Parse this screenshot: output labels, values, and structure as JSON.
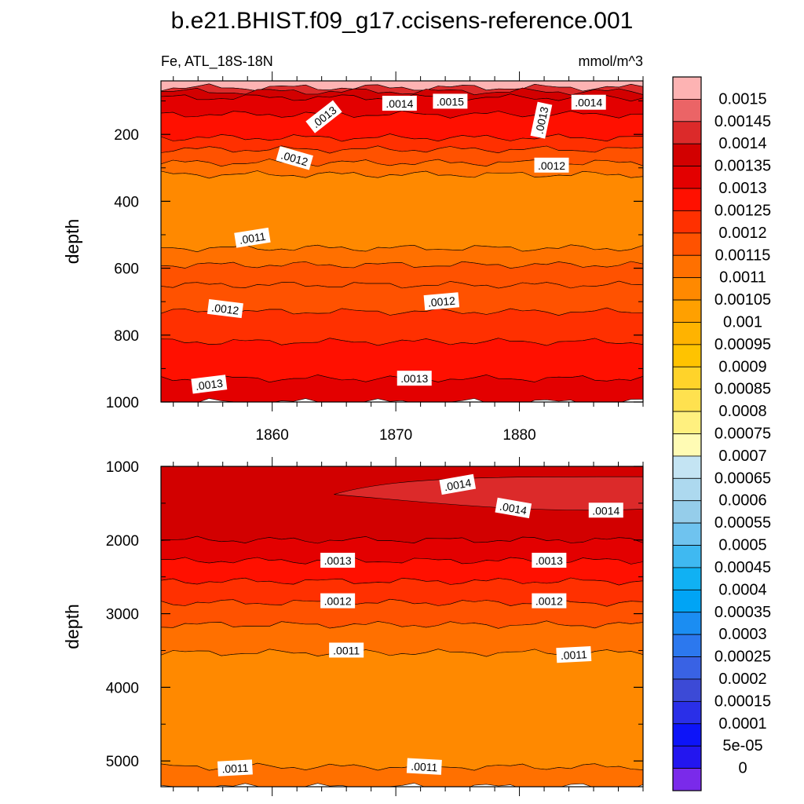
{
  "chart_data": {
    "type": "contour",
    "title": "b.e21.BHIST.f09_g17.ccisens-reference.001",
    "variable_label": "Fe, ATL_18S-18N",
    "units": "mmol/m^3",
    "x": {
      "range": [
        1851,
        1890
      ],
      "ticks": [
        1860,
        1870,
        1880
      ],
      "tick_labels": [
        "1860",
        "1870",
        "1880"
      ]
    },
    "panels": [
      {
        "id": "upper",
        "ylabel": "depth",
        "ylim": [
          40,
          1000
        ],
        "yticks": [
          200,
          400,
          600,
          800,
          1000
        ],
        "ytick_labels": [
          "200",
          "400",
          "600",
          "800",
          "1000"
        ],
        "bands": [
          {
            "from": 0,
            "to": 60,
            "level": 0.00155
          },
          {
            "from": 60,
            "to": 72,
            "level": 0.00145
          },
          {
            "from": 72,
            "to": 90,
            "level": 0.0014
          },
          {
            "from": 90,
            "to": 140,
            "level": 0.00135
          },
          {
            "from": 140,
            "to": 210,
            "level": 0.0013
          },
          {
            "from": 210,
            "to": 245,
            "level": 0.00125
          },
          {
            "from": 245,
            "to": 285,
            "level": 0.0012
          },
          {
            "from": 285,
            "to": 320,
            "level": 0.00115
          },
          {
            "from": 320,
            "to": 540,
            "level": 0.0011
          },
          {
            "from": 540,
            "to": 590,
            "level": 0.00115
          },
          {
            "from": 590,
            "to": 650,
            "level": 0.0012
          },
          {
            "from": 650,
            "to": 730,
            "level": 0.0012
          },
          {
            "from": 730,
            "to": 820,
            "level": 0.00125
          },
          {
            "from": 820,
            "to": 930,
            "level": 0.0013
          },
          {
            "from": 930,
            "to": 1000,
            "level": 0.00135
          }
        ],
        "contour_labels": [
          {
            "text": ".0014",
            "x": 1870.3,
            "y": 108,
            "angle": 0
          },
          {
            "text": ".0015",
            "x": 1874.4,
            "y": 102,
            "angle": 0
          },
          {
            "text": ".0014",
            "x": 1885.6,
            "y": 105,
            "angle": 0
          },
          {
            "text": ".0013",
            "x": 1864.2,
            "y": 148,
            "angle": -38
          },
          {
            "text": ".0013",
            "x": 1881.8,
            "y": 158,
            "angle": -78
          },
          {
            "text": ".0012",
            "x": 1861.8,
            "y": 272,
            "angle": 16
          },
          {
            "text": ".0012",
            "x": 1882.6,
            "y": 293,
            "angle": 0
          },
          {
            "text": ".0011",
            "x": 1858.4,
            "y": 510,
            "angle": -9
          },
          {
            "text": ".0012",
            "x": 1856.2,
            "y": 722,
            "angle": 7
          },
          {
            "text": ".0012",
            "x": 1873.7,
            "y": 700,
            "angle": -5
          },
          {
            "text": ".0013",
            "x": 1854.9,
            "y": 948,
            "angle": -7
          },
          {
            "text": ".0013",
            "x": 1871.5,
            "y": 930,
            "angle": 0
          }
        ]
      },
      {
        "id": "lower",
        "ylabel": "depth",
        "ylim": [
          1000,
          5350
        ],
        "yticks": [
          1000,
          2000,
          3000,
          4000,
          5000
        ],
        "ytick_labels": [
          "1000",
          "2000",
          "3000",
          "4000",
          "5000"
        ],
        "bands": [
          {
            "from": 1000,
            "to": 2000,
            "level": 0.0014
          },
          {
            "from": 2000,
            "to": 2280,
            "level": 0.00135
          },
          {
            "from": 2280,
            "to": 2560,
            "level": 0.0013
          },
          {
            "from": 2560,
            "to": 2850,
            "level": 0.00125
          },
          {
            "from": 2850,
            "to": 3150,
            "level": 0.0012
          },
          {
            "from": 3150,
            "to": 3530,
            "level": 0.00115
          },
          {
            "from": 3530,
            "to": 5080,
            "level": 0.0011
          },
          {
            "from": 5080,
            "to": 5350,
            "level": 0.00115
          }
        ],
        "patch_level": 0.00145,
        "contour_labels": [
          {
            "text": ".0014",
            "x": 1875.0,
            "y": 1250,
            "angle": -10
          },
          {
            "text": ".0014",
            "x": 1879.5,
            "y": 1570,
            "angle": 10
          },
          {
            "text": ".0014",
            "x": 1887.0,
            "y": 1600,
            "angle": 0
          },
          {
            "text": ".0013",
            "x": 1865.3,
            "y": 2280,
            "angle": 0
          },
          {
            "text": ".0013",
            "x": 1882.4,
            "y": 2280,
            "angle": 0
          },
          {
            "text": ".0012",
            "x": 1865.3,
            "y": 2830,
            "angle": 0
          },
          {
            "text": ".0012",
            "x": 1882.4,
            "y": 2830,
            "angle": 0
          },
          {
            "text": ".0011",
            "x": 1866.0,
            "y": 3500,
            "angle": 0
          },
          {
            "text": ".0011",
            "x": 1884.4,
            "y": 3560,
            "angle": -3
          },
          {
            "text": ".0011",
            "x": 1857.0,
            "y": 5100,
            "angle": -3
          },
          {
            "text": ".0011",
            "x": 1872.3,
            "y": 5080,
            "angle": 3
          }
        ]
      }
    ],
    "colorbar": {
      "levels": [
        "0.0015",
        "0.00145",
        "0.0014",
        "0.00135",
        "0.0013",
        "0.00125",
        "0.0012",
        "0.00115",
        "0.0011",
        "0.00105",
        "0.001",
        "0.00095",
        "0.0009",
        "0.00085",
        "0.0008",
        "0.00075",
        "0.0007",
        "0.00065",
        "0.0006",
        "0.00055",
        "0.0005",
        "0.00045",
        "0.0004",
        "0.00035",
        "0.0003",
        "0.00025",
        "0.0002",
        "0.00015",
        "0.0001",
        "5e-05",
        "0"
      ],
      "colors": [
        "#fdb3b3",
        "#eb6466",
        "#dc2a2a",
        "#d20000",
        "#e30000",
        "#ff1000",
        "#ff3000",
        "#ff5200",
        "#ff7000",
        "#ff8900",
        "#ffa000",
        "#ffb300",
        "#ffc300",
        "#ffd32a",
        "#ffe14f",
        "#fff07f",
        "#fffbb4",
        "#c4e4f3",
        "#add9ef",
        "#95cdea",
        "#6fc3ef",
        "#3fb9f1",
        "#10b1f3",
        "#00a4f5",
        "#1b8df2",
        "#2c78ee",
        "#3962e4",
        "#3c4ad6",
        "#2a2fe8",
        "#0d14f8",
        "#2316ef",
        "#7a2aea"
      ]
    }
  }
}
